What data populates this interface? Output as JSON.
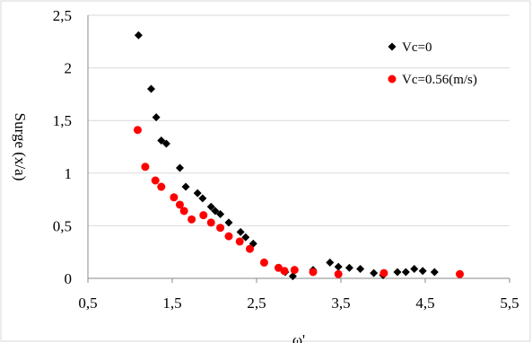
{
  "chart_data": {
    "type": "scatter",
    "xlabel": "ω'",
    "ylabel": "Surge (x/a)",
    "xlim": [
      0.5,
      5.5
    ],
    "ylim": [
      0,
      2.5
    ],
    "x_ticks": [
      "0,5",
      "1,5",
      "2,5",
      "3,5",
      "4,5",
      "5,5"
    ],
    "x_tick_values": [
      0.5,
      1.5,
      2.5,
      3.5,
      4.5,
      5.5
    ],
    "y_ticks": [
      "0",
      "0,5",
      "1",
      "1,5",
      "2",
      "2,5"
    ],
    "y_tick_values": [
      0,
      0.5,
      1,
      1.5,
      2,
      2.5
    ],
    "grid": {
      "horizontal": true,
      "vertical": false
    },
    "legend_position": "top-right",
    "series": [
      {
        "name": "Vc=0",
        "marker": "diamond",
        "color": "#000000",
        "points": [
          [
            1.1,
            2.31
          ],
          [
            1.25,
            1.8
          ],
          [
            1.31,
            1.53
          ],
          [
            1.37,
            1.31
          ],
          [
            1.43,
            1.28
          ],
          [
            1.59,
            1.05
          ],
          [
            1.66,
            0.87
          ],
          [
            1.8,
            0.81
          ],
          [
            1.86,
            0.76
          ],
          [
            1.96,
            0.68
          ],
          [
            2.01,
            0.64
          ],
          [
            2.07,
            0.61
          ],
          [
            2.17,
            0.53
          ],
          [
            2.31,
            0.44
          ],
          [
            2.37,
            0.39
          ],
          [
            2.46,
            0.33
          ],
          [
            2.84,
            0.06
          ],
          [
            2.93,
            0.02
          ],
          [
            3.17,
            0.08
          ],
          [
            3.37,
            0.15
          ],
          [
            3.47,
            0.11
          ],
          [
            3.6,
            0.1
          ],
          [
            3.73,
            0.09
          ],
          [
            3.89,
            0.05
          ],
          [
            4.0,
            0.03
          ],
          [
            4.17,
            0.06
          ],
          [
            4.27,
            0.06
          ],
          [
            4.37,
            0.09
          ],
          [
            4.47,
            0.07
          ],
          [
            4.61,
            0.06
          ]
        ]
      },
      {
        "name": "Vc=0.56(m/s)",
        "marker": "circle",
        "color": "#ff0000",
        "points": [
          [
            1.09,
            1.41
          ],
          [
            1.18,
            1.06
          ],
          [
            1.3,
            0.93
          ],
          [
            1.37,
            0.87
          ],
          [
            1.52,
            0.77
          ],
          [
            1.59,
            0.7
          ],
          [
            1.64,
            0.64
          ],
          [
            1.73,
            0.56
          ],
          [
            1.87,
            0.6
          ],
          [
            1.96,
            0.53
          ],
          [
            2.07,
            0.48
          ],
          [
            2.17,
            0.4
          ],
          [
            2.3,
            0.35
          ],
          [
            2.42,
            0.28
          ],
          [
            2.59,
            0.15
          ],
          [
            2.76,
            0.1
          ],
          [
            2.83,
            0.07
          ],
          [
            2.95,
            0.08
          ],
          [
            3.17,
            0.06
          ],
          [
            3.47,
            0.04
          ],
          [
            4.01,
            0.05
          ],
          [
            4.91,
            0.04
          ]
        ]
      }
    ]
  }
}
